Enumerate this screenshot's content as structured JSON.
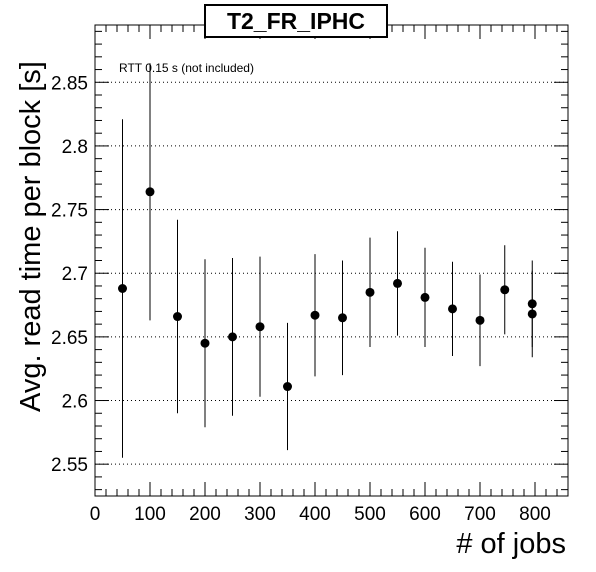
{
  "chart_data": {
    "type": "scatter",
    "title": "T2_FR_IPHC",
    "xlabel": "# of jobs",
    "ylabel": "Avg. read time per block [s]",
    "annotation": "RTT 0.15 s (not included)",
    "xlim": [
      0,
      860
    ],
    "ylim": [
      2.525,
      2.895
    ],
    "x_ticks": [
      0,
      100,
      200,
      300,
      400,
      500,
      600,
      700,
      800
    ],
    "y_ticks": [
      2.55,
      2.6,
      2.65,
      2.7,
      2.75,
      2.8,
      2.85
    ],
    "y_tick_labels": [
      "2.55",
      "2.6",
      "2.65",
      "2.7",
      "2.75",
      "2.8",
      "2.85"
    ],
    "grid": "horizontal-dotted",
    "series": [
      {
        "points": [
          {
            "x": 50,
            "y": 2.688,
            "err": 0.133
          },
          {
            "x": 100,
            "y": 2.764,
            "err": 0.101
          },
          {
            "x": 150,
            "y": 2.666,
            "err": 0.076
          },
          {
            "x": 200,
            "y": 2.645,
            "err": 0.066
          },
          {
            "x": 250,
            "y": 2.65,
            "err": 0.062
          },
          {
            "x": 300,
            "y": 2.658,
            "err": 0.055
          },
          {
            "x": 350,
            "y": 2.611,
            "err": 0.05
          },
          {
            "x": 400,
            "y": 2.667,
            "err": 0.048
          },
          {
            "x": 450,
            "y": 2.665,
            "err": 0.045
          },
          {
            "x": 500,
            "y": 2.685,
            "err": 0.043
          },
          {
            "x": 550,
            "y": 2.692,
            "err": 0.041
          },
          {
            "x": 600,
            "y": 2.681,
            "err": 0.039
          },
          {
            "x": 650,
            "y": 2.672,
            "err": 0.037
          },
          {
            "x": 700,
            "y": 2.663,
            "err": 0.036
          },
          {
            "x": 745,
            "y": 2.687,
            "err": 0.035
          },
          {
            "x": 795,
            "y": 2.676,
            "err": 0.034
          },
          {
            "x": 795,
            "y": 2.668,
            "err": 0.034
          }
        ]
      }
    ]
  }
}
